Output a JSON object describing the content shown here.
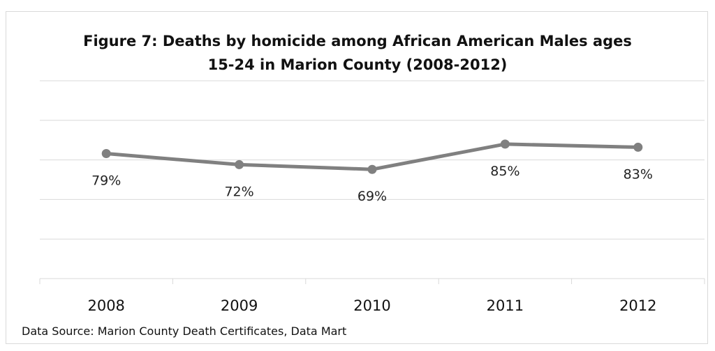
{
  "chart_data": {
    "type": "line",
    "title": "Figure 7: Deaths by homicide among African American Males ages 15-24 in Marion County (2008-2012)",
    "title_lines": [
      "Figure 7: Deaths by homicide among African American Males ages",
      "15-24 in Marion County (2008-2012)"
    ],
    "categories": [
      "2008",
      "2009",
      "2010",
      "2011",
      "2012"
    ],
    "values": [
      79,
      72,
      69,
      85,
      83
    ],
    "data_labels": [
      "79%",
      "72%",
      "69%",
      "85%",
      "83%"
    ],
    "xlabel": "",
    "ylabel": "",
    "ylim": [
      0,
      125
    ],
    "grid": true,
    "legend": "none",
    "line_color": "#808080",
    "gridline_color": "#d9d9d9"
  },
  "footer": {
    "source": "Data Source: Marion County Death Certificates, Data Mart"
  }
}
